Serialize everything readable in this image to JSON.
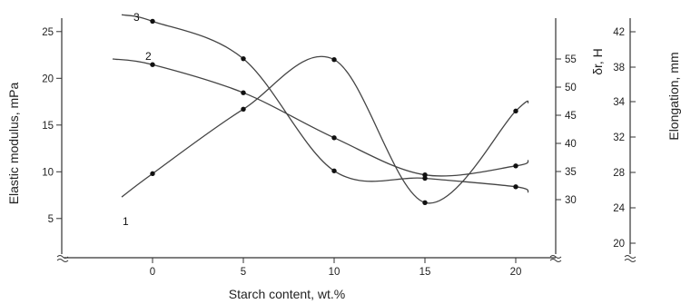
{
  "chart_data": {
    "type": "line",
    "xlabel": "Starch content, wt.%",
    "x_ticks": [
      0,
      5,
      10,
      15,
      20
    ],
    "axes": {
      "left": {
        "label": "Elastic modulus, mPa",
        "ticks": [
          5,
          10,
          15,
          20,
          25
        ],
        "range": [
          3.4,
          27.3
        ]
      },
      "right1": {
        "label": "δr, H",
        "ticks": [
          30,
          35,
          40,
          45,
          50,
          55
        ],
        "range": [
          28.8,
          57.5
        ]
      },
      "right2": {
        "label": "Elongation, mm",
        "ticks": [
          20,
          24,
          28,
          32,
          34,
          38,
          42
        ]
      }
    },
    "x_range": [
      -5,
      23
    ],
    "series": [
      {
        "name": "1",
        "axis": "left",
        "x": [
          0,
          5,
          10,
          15,
          20
        ],
        "y": [
          9.8,
          16.7,
          22.0,
          6.7,
          16.5
        ],
        "curve": [
          [
            -1.7,
            7.3
          ],
          [
            0,
            9.8
          ],
          [
            5,
            16.7
          ],
          [
            10,
            22.0
          ],
          [
            15,
            6.7
          ],
          [
            20,
            16.5
          ],
          [
            20.7,
            17.4
          ]
        ]
      },
      {
        "name": "2",
        "axis": "right1",
        "x": [
          0,
          5,
          10,
          15,
          20
        ],
        "y": [
          54.0,
          49.0,
          41.0,
          34.4,
          36.0
        ],
        "curve": [
          [
            -2.2,
            55.0
          ],
          [
            0,
            54.0
          ],
          [
            5,
            49.0
          ],
          [
            10,
            41.0
          ],
          [
            15,
            34.4
          ],
          [
            20,
            36.0
          ],
          [
            20.7,
            37.0
          ]
        ]
      },
      {
        "name": "3",
        "axis": "left",
        "x": [
          0,
          5,
          10,
          15,
          20
        ],
        "y": [
          26.1,
          22.1,
          10.1,
          9.3,
          8.4
        ],
        "curve": [
          [
            -1.7,
            26.8
          ],
          [
            0,
            26.1
          ],
          [
            5,
            22.1
          ],
          [
            10,
            10.1
          ],
          [
            15,
            9.3
          ],
          [
            20,
            8.4
          ],
          [
            20.7,
            7.8
          ]
        ]
      }
    ]
  }
}
